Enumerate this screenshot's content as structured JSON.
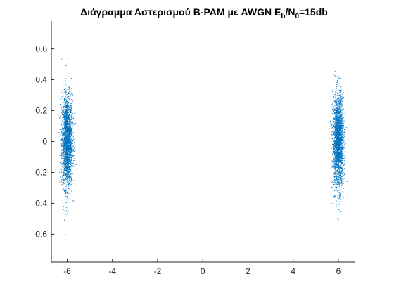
{
  "chart_data": {
    "type": "scatter",
    "title": {
      "main": "Διάγραμμα Αστερισμού B-PAM με AWGN E",
      "sub1": "b",
      "mid": "/N",
      "sub2": "0",
      "tail": "=15db"
    },
    "xlabel": "",
    "ylabel": "",
    "xlim": [
      -6.7,
      6.75
    ],
    "ylim": [
      -0.78,
      0.78
    ],
    "xticks": [
      "-6",
      "-4",
      "-2",
      "0",
      "2",
      "4",
      "6"
    ],
    "yticks": [
      "-0.6",
      "-0.4",
      "-0.2",
      "0",
      "0.2",
      "0.4",
      "0.6"
    ],
    "grid": false,
    "marker_color": "#0072BD",
    "series": [
      {
        "cluster_center_x": -6.0,
        "cluster_center_y": 0.0,
        "x_spread": 0.12,
        "y_spread": 0.15,
        "approx_points": 2500
      },
      {
        "cluster_center_x": 6.0,
        "cluster_center_y": 0.0,
        "x_spread": 0.12,
        "y_spread": 0.15,
        "approx_points": 2500
      }
    ]
  }
}
